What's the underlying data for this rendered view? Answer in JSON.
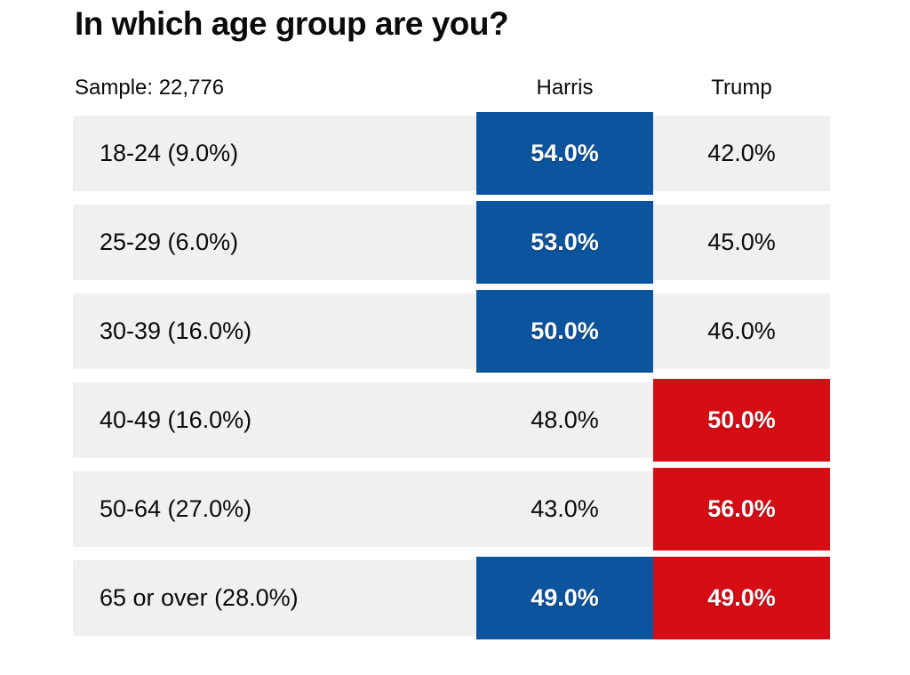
{
  "page": {
    "title": "In which age group are you?",
    "sample_label": "Sample: 22,776"
  },
  "columns": {
    "harris": "Harris",
    "trump": "Trump"
  },
  "colors": {
    "harris_win_bg": "#0d549e",
    "trump_win_bg": "#d60d15",
    "row_bg": "#f0f0f0",
    "win_text": "#ffffff",
    "text": "#0b0b0b"
  },
  "chart_data": {
    "type": "table",
    "title": "In which age group are you?",
    "sample_size": "22,776",
    "columns": [
      "Harris",
      "Trump"
    ],
    "rows": [
      {
        "label": "18-24 (9.0%)",
        "group_share_pct": 9.0,
        "harris": "54.0%",
        "trump": "42.0%",
        "harris_value": 54.0,
        "trump_value": 42.0,
        "harris_win": true,
        "trump_win": false
      },
      {
        "label": "25-29 (6.0%)",
        "group_share_pct": 6.0,
        "harris": "53.0%",
        "trump": "45.0%",
        "harris_value": 53.0,
        "trump_value": 45.0,
        "harris_win": true,
        "trump_win": false
      },
      {
        "label": "30-39 (16.0%)",
        "group_share_pct": 16.0,
        "harris": "50.0%",
        "trump": "46.0%",
        "harris_value": 50.0,
        "trump_value": 46.0,
        "harris_win": true,
        "trump_win": false
      },
      {
        "label": "40-49 (16.0%)",
        "group_share_pct": 16.0,
        "harris": "48.0%",
        "trump": "50.0%",
        "harris_value": 48.0,
        "trump_value": 50.0,
        "harris_win": false,
        "trump_win": true
      },
      {
        "label": "50-64 (27.0%)",
        "group_share_pct": 27.0,
        "harris": "43.0%",
        "trump": "56.0%",
        "harris_value": 43.0,
        "trump_value": 56.0,
        "harris_win": false,
        "trump_win": true
      },
      {
        "label": "65 or over (28.0%)",
        "group_share_pct": 28.0,
        "harris": "49.0%",
        "trump": "49.0%",
        "harris_value": 49.0,
        "trump_value": 49.0,
        "harris_win": true,
        "trump_win": true
      }
    ]
  }
}
